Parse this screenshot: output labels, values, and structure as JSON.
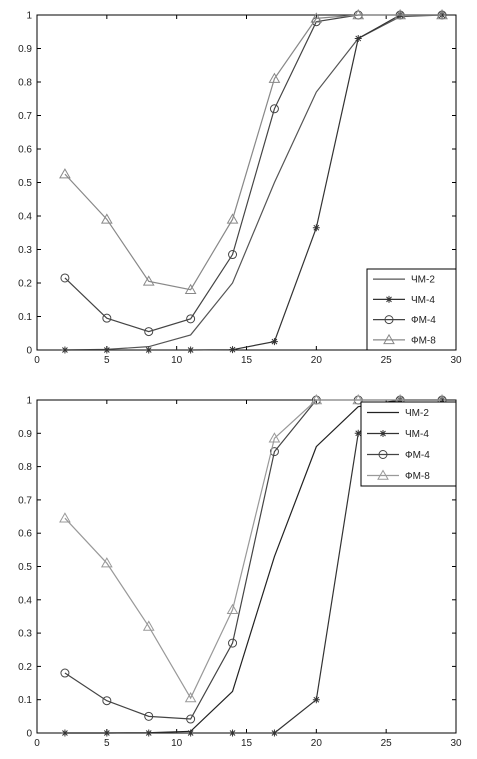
{
  "chart_data": [
    {
      "type": "line",
      "xlim": [
        0,
        30
      ],
      "ylim": [
        0,
        1
      ],
      "xticks": [
        0,
        5,
        10,
        15,
        20,
        25,
        30
      ],
      "yticks": [
        0,
        0.1,
        0.2,
        0.3,
        0.4,
        0.5,
        0.6,
        0.7,
        0.8,
        0.9,
        1
      ],
      "grid": false,
      "legend_position": "bottom-right",
      "x": [
        2,
        5,
        8,
        11,
        14,
        17,
        20,
        23,
        26,
        29
      ],
      "series": [
        {
          "name": "ЧМ-2",
          "marker": "none",
          "color": "#555555",
          "values": [
            0,
            0.002,
            0.01,
            0.045,
            0.2,
            0.5,
            0.77,
            0.93,
            0.995,
            1
          ]
        },
        {
          "name": "ЧМ-4",
          "marker": "star",
          "color": "#333333",
          "values": [
            0,
            0,
            0,
            0,
            0.001,
            0.025,
            0.365,
            0.93,
            1,
            1
          ]
        },
        {
          "name": "ФМ-4",
          "marker": "circle",
          "color": "#444444",
          "values": [
            0.215,
            0.095,
            0.055,
            0.093,
            0.285,
            0.72,
            0.98,
            1,
            1,
            1
          ]
        },
        {
          "name": "ФМ-8",
          "marker": "triangle",
          "color": "#888888",
          "values": [
            0.525,
            0.39,
            0.205,
            0.18,
            0.39,
            0.81,
            0.99,
            1,
            1,
            1
          ]
        }
      ]
    },
    {
      "type": "line",
      "xlim": [
        0,
        30
      ],
      "ylim": [
        0,
        1
      ],
      "xticks": [
        0,
        5,
        10,
        15,
        20,
        25,
        30
      ],
      "yticks": [
        0,
        0.1,
        0.2,
        0.3,
        0.4,
        0.5,
        0.6,
        0.7,
        0.8,
        0.9,
        1
      ],
      "grid": false,
      "legend_position": "top-right",
      "x": [
        2,
        5,
        8,
        11,
        14,
        17,
        20,
        23,
        26,
        29
      ],
      "series": [
        {
          "name": "ЧМ-2",
          "marker": "none",
          "color": "#222222",
          "values": [
            0,
            0,
            0.001,
            0.005,
            0.125,
            0.53,
            0.86,
            0.98,
            1,
            1
          ]
        },
        {
          "name": "ЧМ-4",
          "marker": "star",
          "color": "#333333",
          "values": [
            0,
            0,
            0,
            0,
            0,
            0,
            0.1,
            0.9,
            1,
            1
          ]
        },
        {
          "name": "ФМ-4",
          "marker": "circle",
          "color": "#444444",
          "values": [
            0.18,
            0.097,
            0.05,
            0.042,
            0.27,
            0.845,
            1,
            1,
            1,
            1
          ]
        },
        {
          "name": "ФМ-8",
          "marker": "triangle",
          "color": "#999999",
          "values": [
            0.645,
            0.51,
            0.32,
            0.105,
            0.37,
            0.885,
            1,
            1,
            1,
            1
          ]
        }
      ]
    }
  ]
}
